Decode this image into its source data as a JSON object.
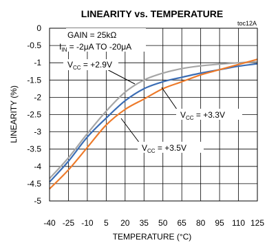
{
  "chart_data": {
    "type": "line",
    "title": "LINEARITY vs. TEMPERATURE",
    "figure_tag": "toc12A",
    "xlabel": "TEMPERATURE (°C)",
    "ylabel": "LINEARITY (%)",
    "xlim": [
      -40,
      125
    ],
    "ylim": [
      -5,
      0
    ],
    "x_ticks": [
      -40,
      -25,
      -10,
      5,
      20,
      35,
      50,
      65,
      80,
      95,
      110,
      125
    ],
    "y_ticks": [
      0,
      -0.5,
      -1,
      -1.5,
      -2,
      -2.5,
      -3,
      -3.5,
      -4,
      -4.5,
      -5
    ],
    "grid": true,
    "conditions": {
      "gain": {
        "prefix": "GAIN = 25k",
        "unit": "Ω"
      },
      "current": {
        "main": "I",
        "sub": "IN",
        "text": " = -2μA  TO -20μA"
      }
    },
    "series": [
      {
        "name": "VCC = +2.9V",
        "label": {
          "main": "V",
          "sub": "CC",
          "rest": " = +2.9V"
        },
        "color": "#a6a6a6",
        "x": [
          -40,
          -25,
          -10,
          5,
          20,
          35,
          50,
          65,
          80,
          95,
          110,
          125
        ],
        "y": [
          -4.35,
          -3.75,
          -3.05,
          -2.4,
          -1.85,
          -1.5,
          -1.3,
          -1.17,
          -1.09,
          -1.04,
          -1.0,
          -0.97
        ]
      },
      {
        "name": "VCC = +3.3V",
        "label": {
          "main": "V",
          "sub": "CC",
          "rest": " = +3.3V"
        },
        "color": "#3b6db5",
        "x": [
          -40,
          -25,
          -10,
          5,
          20,
          35,
          50,
          65,
          80,
          95,
          110,
          125
        ],
        "y": [
          -4.45,
          -3.85,
          -3.15,
          -2.6,
          -2.1,
          -1.75,
          -1.55,
          -1.42,
          -1.3,
          -1.2,
          -1.1,
          -1.03
        ]
      },
      {
        "name": "VCC = +3.5V",
        "label": {
          "main": "V",
          "sub": "CC",
          "rest": " = +3.5V"
        },
        "color": "#ed7a2a",
        "x": [
          -40,
          -25,
          -10,
          5,
          20,
          35,
          50,
          65,
          80,
          95,
          110,
          125
        ],
        "y": [
          -4.65,
          -4.1,
          -3.45,
          -2.8,
          -2.35,
          -2.05,
          -1.75,
          -1.55,
          -1.35,
          -1.2,
          -1.05,
          -0.9
        ]
      }
    ]
  }
}
